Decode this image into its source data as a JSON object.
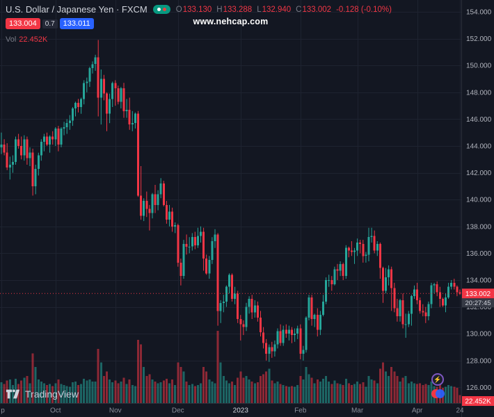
{
  "header": {
    "symbol_title": "U.S. Dollar / Japanese Yen · FXCM",
    "ohlc": [
      {
        "label": "O",
        "value": "133.130"
      },
      {
        "label": "H",
        "value": "133.288"
      },
      {
        "label": "L",
        "value": "132.940"
      },
      {
        "label": "C",
        "value": "133.002"
      }
    ],
    "change": "-0.128 (-0.10%)",
    "sell_price": "133.004",
    "spread": "0.7",
    "buy_price": "133.011",
    "volume_label": "Vol",
    "volume_value": "22.452K"
  },
  "watermark": "www.nehcap.com",
  "price_scale": {
    "labels": [
      "154.000",
      "152.000",
      "150.000",
      "148.000",
      "146.000",
      "144.000",
      "142.000",
      "140.000",
      "138.000",
      "136.000",
      "134.000",
      "132.000",
      "130.000",
      "128.000",
      "126.000"
    ],
    "current_price": "133.002",
    "countdown": "20:27:45",
    "volume_badge": "22.452K"
  },
  "time_scale": {
    "ticks": [
      {
        "label": "p",
        "index": 0
      },
      {
        "label": "Oct",
        "index": 19
      },
      {
        "label": "Nov",
        "index": 40
      },
      {
        "label": "Dec",
        "index": 62
      },
      {
        "label": "2023",
        "index": 84,
        "major": true
      },
      {
        "label": "Feb",
        "index": 105
      },
      {
        "label": "Mar",
        "index": 125
      },
      {
        "label": "Apr",
        "index": 146
      },
      {
        "label": "24",
        "index": 161
      }
    ]
  },
  "footer": {
    "logo_text": "TradingView"
  },
  "colors": {
    "bg": "#131722",
    "grid": "#1e2330",
    "up": "#26a69a",
    "down": "#f23645",
    "axis_text": "#b2b5be",
    "axis_border": "#2a2e39",
    "price_line": "#f23645",
    "badge_red": "#f23645",
    "badge_blue": "#2962ff",
    "countdown_bg": "#363a45"
  },
  "chart_data": {
    "type": "candlestick",
    "title": "U.S. Dollar / Japanese Yen · FXCM, daily",
    "symbol": "USDJPY",
    "exchange": "FXCM",
    "last_close": 133.002,
    "last_volume_k": 22.452,
    "price_axis": {
      "min": 124.8,
      "max": 154.9,
      "tick_step": 2
    },
    "x_axis_months": [
      "Sep",
      "Oct",
      "Nov",
      "Dec",
      "2023",
      "Feb",
      "Mar",
      "Apr"
    ],
    "candles_format": [
      "open",
      "high",
      "low",
      "close",
      "volume_k"
    ],
    "candles": [
      [
        143.9,
        145.0,
        143.4,
        144.1,
        23
      ],
      [
        144.1,
        144.5,
        143.3,
        143.5,
        21
      ],
      [
        143.5,
        144.2,
        142.2,
        142.4,
        25
      ],
      [
        142.4,
        143.2,
        141.5,
        142.6,
        26
      ],
      [
        142.6,
        143.3,
        142.0,
        142.8,
        20
      ],
      [
        142.8,
        144.7,
        142.6,
        144.5,
        27
      ],
      [
        144.5,
        144.9,
        143.8,
        144.0,
        21
      ],
      [
        144.0,
        144.7,
        143.0,
        143.3,
        25
      ],
      [
        143.3,
        144.8,
        142.9,
        144.5,
        28
      ],
      [
        144.5,
        144.7,
        142.6,
        143.1,
        30
      ],
      [
        143.1,
        143.9,
        142.5,
        143.5,
        22
      ],
      [
        143.5,
        143.8,
        140.3,
        141.0,
        55
      ],
      [
        141.0,
        142.6,
        140.4,
        142.3,
        40
      ],
      [
        142.3,
        143.5,
        141.8,
        143.3,
        26
      ],
      [
        143.3,
        144.5,
        142.9,
        144.3,
        24
      ],
      [
        144.3,
        144.9,
        143.6,
        144.7,
        22
      ],
      [
        144.7,
        145.0,
        144.0,
        144.1,
        20
      ],
      [
        144.1,
        144.8,
        143.5,
        144.7,
        21
      ],
      [
        144.7,
        145.1,
        144.1,
        144.5,
        19
      ],
      [
        144.5,
        145.4,
        144.0,
        145.3,
        22
      ],
      [
        145.3,
        145.5,
        143.6,
        144.1,
        26
      ],
      [
        144.1,
        145.4,
        143.9,
        145.3,
        21
      ],
      [
        145.3,
        145.8,
        144.8,
        145.4,
        20
      ],
      [
        145.4,
        146.0,
        144.9,
        145.7,
        19
      ],
      [
        145.7,
        146.3,
        145.2,
        145.9,
        18
      ],
      [
        145.9,
        146.9,
        145.5,
        146.8,
        23
      ],
      [
        146.8,
        147.3,
        146.2,
        147.2,
        24
      ],
      [
        147.2,
        147.5,
        146.5,
        146.9,
        20
      ],
      [
        146.9,
        147.6,
        146.4,
        147.5,
        21
      ],
      [
        147.5,
        148.9,
        147.1,
        148.7,
        27
      ],
      [
        148.7,
        149.1,
        148.0,
        148.8,
        25
      ],
      [
        148.8,
        149.9,
        148.4,
        149.8,
        26
      ],
      [
        149.8,
        150.3,
        149.4,
        150.1,
        24
      ],
      [
        150.1,
        150.8,
        149.6,
        150.6,
        24
      ],
      [
        150.6,
        151.9,
        146.2,
        147.6,
        60
      ],
      [
        147.6,
        149.7,
        145.6,
        149.0,
        45
      ],
      [
        149.0,
        149.3,
        147.4,
        147.9,
        30
      ],
      [
        147.9,
        148.0,
        145.1,
        146.4,
        35
      ],
      [
        146.4,
        147.9,
        145.7,
        147.5,
        26
      ],
      [
        147.5,
        148.8,
        146.9,
        148.7,
        23
      ],
      [
        148.7,
        148.9,
        147.0,
        148.3,
        25
      ],
      [
        148.3,
        148.5,
        147.1,
        147.3,
        22
      ],
      [
        147.3,
        148.4,
        146.8,
        148.3,
        24
      ],
      [
        148.3,
        148.7,
        146.1,
        146.6,
        28
      ],
      [
        146.6,
        147.5,
        146.1,
        146.7,
        21
      ],
      [
        146.7,
        147.6,
        145.2,
        145.6,
        26
      ],
      [
        145.6,
        146.6,
        145.1,
        145.7,
        20
      ],
      [
        145.7,
        146.5,
        145.3,
        146.4,
        19
      ],
      [
        146.4,
        146.6,
        140.2,
        140.3,
        70
      ],
      [
        140.3,
        142.5,
        138.5,
        138.8,
        65
      ],
      [
        138.8,
        140.1,
        138.4,
        139.9,
        40
      ],
      [
        139.9,
        140.6,
        138.7,
        139.3,
        30
      ],
      [
        139.3,
        139.6,
        137.7,
        139.0,
        32
      ],
      [
        139.0,
        140.5,
        138.6,
        140.4,
        26
      ],
      [
        140.4,
        141.1,
        139.0,
        139.6,
        24
      ],
      [
        139.6,
        140.7,
        139.2,
        140.4,
        22
      ],
      [
        140.4,
        141.6,
        140.1,
        141.2,
        23
      ],
      [
        141.2,
        141.4,
        139.5,
        139.6,
        25
      ],
      [
        139.6,
        139.9,
        138.2,
        138.5,
        27
      ],
      [
        138.5,
        139.6,
        138.0,
        139.1,
        22
      ],
      [
        139.1,
        139.4,
        137.6,
        138.0,
        26
      ],
      [
        138.0,
        138.3,
        137.5,
        138.1,
        20
      ],
      [
        138.1,
        138.2,
        135.0,
        135.3,
        45
      ],
      [
        135.3,
        135.6,
        133.6,
        134.3,
        40
      ],
      [
        134.3,
        137.0,
        134.1,
        136.7,
        35
      ],
      [
        136.7,
        137.4,
        135.9,
        136.5,
        24
      ],
      [
        136.5,
        137.2,
        136.0,
        136.5,
        20
      ],
      [
        136.5,
        137.5,
        136.2,
        137.2,
        21
      ],
      [
        137.2,
        137.6,
        136.3,
        136.6,
        19
      ],
      [
        136.6,
        137.9,
        136.4,
        137.3,
        20
      ],
      [
        137.3,
        138.0,
        136.8,
        137.6,
        22
      ],
      [
        137.6,
        137.9,
        134.7,
        135.6,
        40
      ],
      [
        135.6,
        135.9,
        134.4,
        134.5,
        35
      ],
      [
        134.5,
        135.8,
        134.1,
        135.5,
        26
      ],
      [
        135.5,
        137.2,
        135.2,
        136.9,
        24
      ],
      [
        136.9,
        137.8,
        136.4,
        137.4,
        22
      ],
      [
        137.4,
        137.5,
        130.6,
        131.7,
        80
      ],
      [
        131.7,
        132.5,
        130.8,
        132.3,
        45
      ],
      [
        132.3,
        132.9,
        131.6,
        132.4,
        30
      ],
      [
        132.4,
        133.6,
        132.0,
        133.5,
        25
      ],
      [
        133.5,
        134.5,
        133.0,
        134.4,
        22
      ],
      [
        134.4,
        134.5,
        132.4,
        132.6,
        24
      ],
      [
        132.6,
        133.5,
        132.2,
        133.0,
        20
      ],
      [
        133.0,
        133.2,
        130.8,
        131.1,
        28
      ],
      [
        131.1,
        131.4,
        129.5,
        130.7,
        35
      ],
      [
        130.7,
        131.0,
        129.9,
        130.5,
        28
      ],
      [
        130.5,
        132.3,
        130.2,
        132.0,
        30
      ],
      [
        132.0,
        132.8,
        131.5,
        132.6,
        26
      ],
      [
        132.6,
        132.9,
        131.1,
        131.6,
        24
      ],
      [
        131.6,
        132.5,
        131.2,
        132.1,
        22
      ],
      [
        132.1,
        132.4,
        130.9,
        131.2,
        23
      ],
      [
        131.2,
        131.7,
        129.8,
        130.1,
        30
      ],
      [
        130.1,
        130.5,
        128.9,
        129.3,
        32
      ],
      [
        129.3,
        129.6,
        128.0,
        128.5,
        35
      ],
      [
        128.5,
        129.2,
        127.9,
        129.0,
        38
      ],
      [
        129.0,
        129.4,
        128.2,
        128.7,
        25
      ],
      [
        128.7,
        129.5,
        128.3,
        129.2,
        22
      ],
      [
        129.2,
        130.4,
        128.9,
        130.2,
        24
      ],
      [
        130.2,
        130.7,
        129.1,
        129.3,
        21
      ],
      [
        129.3,
        130.6,
        129.1,
        130.3,
        20
      ],
      [
        130.3,
        130.7,
        129.7,
        130.0,
        19
      ],
      [
        130.0,
        130.6,
        129.5,
        130.3,
        18
      ],
      [
        130.3,
        130.5,
        129.3,
        129.9,
        19
      ],
      [
        129.9,
        130.4,
        129.4,
        130.0,
        18
      ],
      [
        130.0,
        130.6,
        129.6,
        130.4,
        20
      ],
      [
        130.4,
        130.7,
        128.1,
        128.5,
        30
      ],
      [
        128.5,
        129.1,
        128.0,
        128.8,
        26
      ],
      [
        128.8,
        131.3,
        128.6,
        131.2,
        40
      ],
      [
        131.2,
        132.9,
        131.0,
        132.7,
        32
      ],
      [
        132.7,
        132.9,
        130.6,
        131.1,
        28
      ],
      [
        131.1,
        131.5,
        130.5,
        131.4,
        22
      ],
      [
        131.4,
        131.9,
        129.8,
        130.3,
        26
      ],
      [
        130.3,
        131.7,
        129.9,
        131.4,
        24
      ],
      [
        131.4,
        132.9,
        131.3,
        132.4,
        27
      ],
      [
        132.4,
        134.2,
        132.2,
        134.0,
        30
      ],
      [
        134.0,
        134.4,
        133.5,
        134.0,
        24
      ],
      [
        134.0,
        134.3,
        133.2,
        133.7,
        21
      ],
      [
        133.7,
        135.0,
        133.6,
        134.8,
        25
      ],
      [
        134.8,
        135.2,
        134.0,
        134.7,
        22
      ],
      [
        134.7,
        135.4,
        134.3,
        135.2,
        21
      ],
      [
        135.2,
        135.3,
        134.0,
        134.3,
        20
      ],
      [
        134.3,
        136.6,
        134.1,
        136.4,
        27
      ],
      [
        136.4,
        136.5,
        135.7,
        136.2,
        22
      ],
      [
        136.2,
        136.9,
        135.8,
        136.1,
        20
      ],
      [
        136.1,
        136.4,
        135.2,
        136.2,
        21
      ],
      [
        136.2,
        137.1,
        135.8,
        136.8,
        24
      ],
      [
        136.8,
        137.0,
        136.0,
        136.7,
        21
      ],
      [
        136.7,
        137.0,
        135.3,
        135.8,
        23
      ],
      [
        135.8,
        136.1,
        135.3,
        135.9,
        18
      ],
      [
        135.9,
        137.9,
        135.4,
        137.2,
        30
      ],
      [
        137.2,
        137.9,
        136.8,
        137.3,
        26
      ],
      [
        137.3,
        137.7,
        136.0,
        136.2,
        25
      ],
      [
        136.2,
        136.9,
        135.8,
        136.7,
        22
      ],
      [
        136.7,
        136.8,
        134.1,
        134.9,
        38
      ],
      [
        134.9,
        135.0,
        132.3,
        133.2,
        45
      ],
      [
        133.2,
        134.9,
        133.0,
        134.2,
        35
      ],
      [
        134.2,
        135.1,
        133.6,
        134.8,
        30
      ],
      [
        134.8,
        135.0,
        131.7,
        133.4,
        40
      ],
      [
        133.4,
        133.8,
        131.6,
        131.9,
        35
      ],
      [
        131.9,
        132.6,
        130.9,
        131.3,
        30
      ],
      [
        131.3,
        132.6,
        130.9,
        132.5,
        24
      ],
      [
        132.5,
        133.0,
        130.4,
        130.7,
        28
      ],
      [
        130.7,
        131.5,
        129.7,
        130.7,
        30
      ],
      [
        130.7,
        131.7,
        130.5,
        131.5,
        22
      ],
      [
        131.5,
        132.9,
        130.6,
        132.8,
        24
      ],
      [
        132.8,
        133.6,
        132.6,
        133.3,
        22
      ],
      [
        133.3,
        133.8,
        132.2,
        132.5,
        21
      ],
      [
        132.5,
        132.7,
        131.5,
        131.7,
        22
      ],
      [
        131.7,
        132.2,
        131.3,
        131.6,
        20
      ],
      [
        131.6,
        132.0,
        130.8,
        131.3,
        21
      ],
      [
        131.3,
        132.4,
        131.0,
        132.2,
        20
      ],
      [
        132.2,
        133.8,
        131.9,
        133.6,
        24
      ],
      [
        133.6,
        133.8,
        133.0,
        133.7,
        19
      ],
      [
        133.7,
        133.9,
        132.8,
        133.1,
        18
      ],
      [
        133.1,
        133.5,
        132.0,
        132.6,
        20
      ],
      [
        132.6,
        132.7,
        132.0,
        132.1,
        17
      ],
      [
        132.1,
        133.0,
        131.6,
        132.7,
        18
      ],
      [
        132.7,
        133.8,
        132.6,
        133.5,
        20
      ],
      [
        133.5,
        134.0,
        133.3,
        133.8,
        19
      ],
      [
        133.8,
        134.1,
        133.3,
        133.5,
        18
      ],
      [
        133.5,
        133.6,
        132.8,
        133.1,
        17
      ],
      [
        133.1,
        133.3,
        132.9,
        133.0,
        9
      ]
    ]
  }
}
